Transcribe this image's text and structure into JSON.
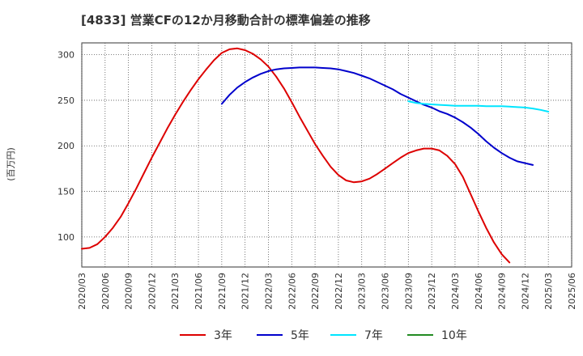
{
  "chart_data": {
    "type": "line",
    "title": "[4833]  営業CFの12か月移動合計の標準偏差の推移",
    "ylabel": "(百万円)",
    "xlabel": "",
    "ylim": [
      67,
      313
    ],
    "yticks": [
      100,
      150,
      200,
      250,
      300
    ],
    "grid": true,
    "legend_position": "bottom",
    "x": [
      "2020/03",
      "2020/06",
      "2020/09",
      "2020/12",
      "2021/03",
      "2021/06",
      "2021/09",
      "2021/12",
      "2022/03",
      "2022/06",
      "2022/09",
      "2022/12",
      "2023/03",
      "2023/06",
      "2023/09",
      "2023/12",
      "2024/03",
      "2024/06",
      "2024/09",
      "2024/12",
      "2025/03",
      "2025/06"
    ],
    "series": [
      {
        "name": "3年",
        "color": "#dd0000",
        "points": [
          [
            "2020/03",
            87
          ],
          [
            "2020/04",
            88
          ],
          [
            "2020/05",
            92
          ],
          [
            "2020/06",
            100
          ],
          [
            "2020/07",
            110
          ],
          [
            "2020/08",
            122
          ],
          [
            "2020/09",
            137
          ],
          [
            "2020/10",
            153
          ],
          [
            "2020/11",
            170
          ],
          [
            "2020/12",
            187
          ],
          [
            "2021/01",
            203
          ],
          [
            "2021/02",
            219
          ],
          [
            "2021/03",
            234
          ],
          [
            "2021/04",
            248
          ],
          [
            "2021/05",
            261
          ],
          [
            "2021/06",
            273
          ],
          [
            "2021/07",
            284
          ],
          [
            "2021/08",
            294
          ],
          [
            "2021/09",
            302
          ],
          [
            "2021/10",
            306
          ],
          [
            "2021/11",
            307
          ],
          [
            "2021/12",
            305
          ],
          [
            "2022/01",
            301
          ],
          [
            "2022/02",
            295
          ],
          [
            "2022/03",
            287
          ],
          [
            "2022/04",
            276
          ],
          [
            "2022/05",
            263
          ],
          [
            "2022/06",
            248
          ],
          [
            "2022/07",
            232
          ],
          [
            "2022/08",
            217
          ],
          [
            "2022/09",
            202
          ],
          [
            "2022/10",
            189
          ],
          [
            "2022/11",
            177
          ],
          [
            "2022/12",
            168
          ],
          [
            "2023/01",
            162
          ],
          [
            "2023/02",
            160
          ],
          [
            "2023/03",
            161
          ],
          [
            "2023/04",
            164
          ],
          [
            "2023/05",
            169
          ],
          [
            "2023/06",
            175
          ],
          [
            "2023/07",
            181
          ],
          [
            "2023/08",
            187
          ],
          [
            "2023/09",
            192
          ],
          [
            "2023/10",
            195
          ],
          [
            "2023/11",
            197
          ],
          [
            "2023/12",
            197
          ],
          [
            "2024/01",
            195
          ],
          [
            "2024/02",
            189
          ],
          [
            "2024/03",
            180
          ],
          [
            "2024/04",
            166
          ],
          [
            "2024/05",
            147
          ],
          [
            "2024/06",
            128
          ],
          [
            "2024/07",
            110
          ],
          [
            "2024/08",
            94
          ],
          [
            "2024/09",
            81
          ],
          [
            "2024/10",
            72
          ]
        ]
      },
      {
        "name": "5年",
        "color": "#0000cc",
        "points": [
          [
            "2021/09",
            246
          ],
          [
            "2021/10",
            256
          ],
          [
            "2021/11",
            264
          ],
          [
            "2021/12",
            270
          ],
          [
            "2022/01",
            275
          ],
          [
            "2022/02",
            279
          ],
          [
            "2022/03",
            282
          ],
          [
            "2022/04",
            284
          ],
          [
            "2022/05",
            285
          ],
          [
            "2022/06",
            285.5
          ],
          [
            "2022/07",
            286
          ],
          [
            "2022/08",
            286
          ],
          [
            "2022/09",
            286
          ],
          [
            "2022/10",
            285.5
          ],
          [
            "2022/11",
            285
          ],
          [
            "2022/12",
            284
          ],
          [
            "2023/01",
            282
          ],
          [
            "2023/02",
            280
          ],
          [
            "2023/03",
            277
          ],
          [
            "2023/04",
            274
          ],
          [
            "2023/05",
            270
          ],
          [
            "2023/06",
            266
          ],
          [
            "2023/07",
            262
          ],
          [
            "2023/08",
            257
          ],
          [
            "2023/09",
            253
          ],
          [
            "2023/10",
            249
          ],
          [
            "2023/11",
            245
          ],
          [
            "2023/12",
            242
          ],
          [
            "2024/01",
            238
          ],
          [
            "2024/02",
            235
          ],
          [
            "2024/03",
            231
          ],
          [
            "2024/04",
            226
          ],
          [
            "2024/05",
            220
          ],
          [
            "2024/06",
            213
          ],
          [
            "2024/07",
            205
          ],
          [
            "2024/08",
            198
          ],
          [
            "2024/09",
            192
          ],
          [
            "2024/10",
            187
          ],
          [
            "2024/11",
            183
          ],
          [
            "2024/12",
            181
          ],
          [
            "2025/01",
            179
          ]
        ]
      },
      {
        "name": "7年",
        "color": "#00e5ff",
        "points": [
          [
            "2023/09",
            249
          ],
          [
            "2023/10",
            247
          ],
          [
            "2023/11",
            246
          ],
          [
            "2023/12",
            245.5
          ],
          [
            "2024/01",
            245
          ],
          [
            "2024/02",
            244.5
          ],
          [
            "2024/03",
            244
          ],
          [
            "2024/04",
            244
          ],
          [
            "2024/05",
            244
          ],
          [
            "2024/06",
            244
          ],
          [
            "2024/07",
            243.5
          ],
          [
            "2024/08",
            243.5
          ],
          [
            "2024/09",
            243.5
          ],
          [
            "2024/10",
            243
          ],
          [
            "2024/11",
            242.5
          ],
          [
            "2024/12",
            242
          ],
          [
            "2025/01",
            241
          ],
          [
            "2025/02",
            239.5
          ],
          [
            "2025/03",
            237.5
          ]
        ]
      },
      {
        "name": "10年",
        "color": "#228b22",
        "points": []
      }
    ]
  }
}
